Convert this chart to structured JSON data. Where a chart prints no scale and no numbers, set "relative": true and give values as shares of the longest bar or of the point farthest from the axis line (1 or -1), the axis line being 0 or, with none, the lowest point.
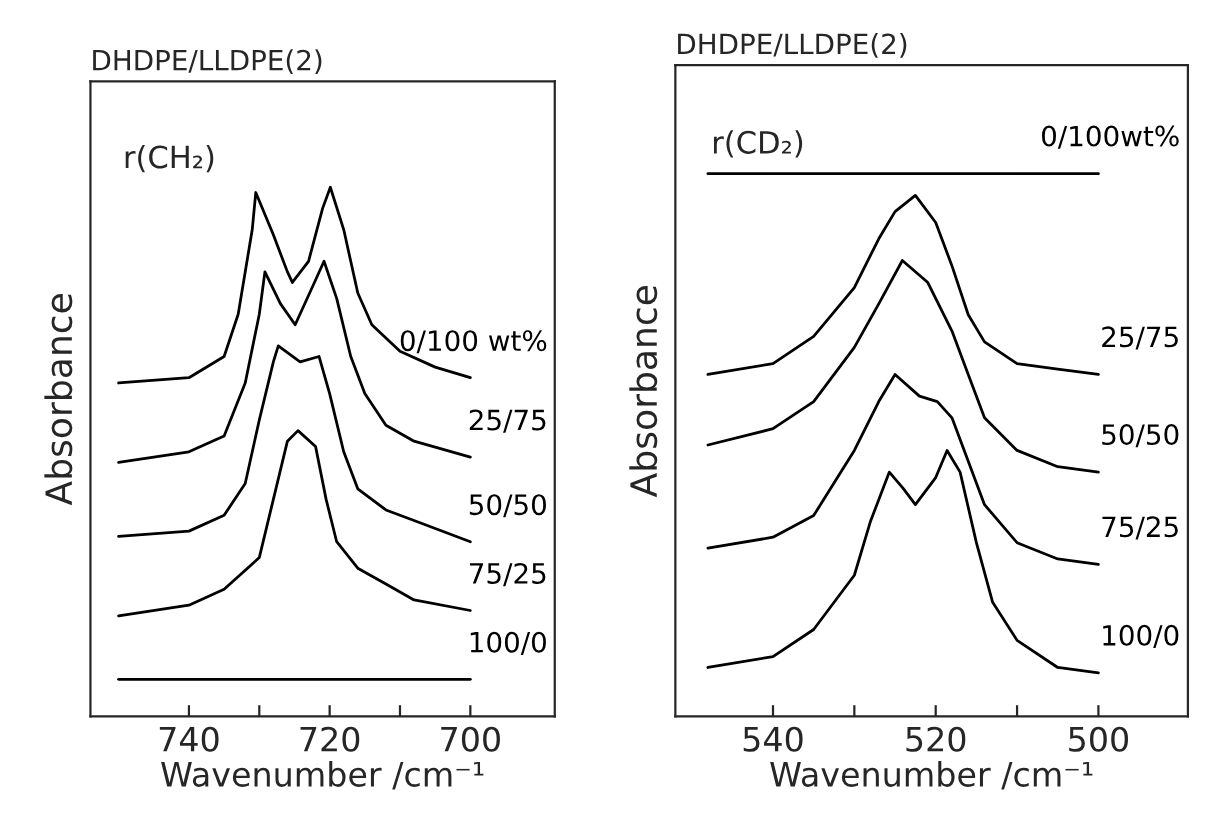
{
  "chart_data": [
    {
      "type": "line",
      "title": "DHDPE/LLDPE(2)",
      "xlabel": "Wavenumber /cm⁻¹",
      "ylabel": "Absorbance",
      "relative": true,
      "annotations": [
        "r(CH₂)"
      ],
      "xlim": [
        754,
        688
      ],
      "xticks": [
        740,
        {
          "value": 730,
          "label": null
        },
        720,
        {
          "value": 710,
          "label": null
        },
        700
      ],
      "grid": false,
      "legend": false,
      "marker": "none",
      "line_style": "solid",
      "series": [
        {
          "name": "0/100 wt%",
          "color": "#000000",
          "x": [
            750,
            740,
            735,
            733,
            731,
            730.5,
            728,
            726,
            725.3,
            723,
            721,
            719.9,
            718,
            716,
            714,
            710,
            705,
            700
          ],
          "values": [
            0.63,
            0.64,
            0.68,
            0.76,
            0.92,
            0.99,
            0.91,
            0.84,
            0.82,
            0.86,
            0.96,
            1.0,
            0.92,
            0.8,
            0.74,
            0.69,
            0.66,
            0.64
          ]
        },
        {
          "name": "25/75",
          "color": "#000000",
          "x": [
            750,
            740,
            735,
            732,
            730,
            729.2,
            727,
            724.9,
            722.5,
            720.8,
            719,
            717,
            715,
            712,
            708,
            700
          ],
          "values": [
            0.48,
            0.5,
            0.53,
            0.63,
            0.76,
            0.84,
            0.78,
            0.74,
            0.81,
            0.86,
            0.79,
            0.68,
            0.61,
            0.55,
            0.52,
            0.49
          ]
        },
        {
          "name": "50/50",
          "color": "#000000",
          "x": [
            750,
            740,
            735,
            732,
            730,
            728,
            727.3,
            724.2,
            721.5,
            720,
            718,
            716,
            712,
            708,
            700
          ],
          "values": [
            0.34,
            0.35,
            0.38,
            0.44,
            0.56,
            0.67,
            0.7,
            0.67,
            0.68,
            0.61,
            0.5,
            0.43,
            0.39,
            0.37,
            0.33
          ]
        },
        {
          "name": "75/25",
          "color": "#000000",
          "x": [
            750,
            740,
            735,
            730,
            728,
            726,
            724.5,
            722,
            720.5,
            719,
            716,
            712,
            708,
            700
          ],
          "values": [
            0.19,
            0.21,
            0.24,
            0.3,
            0.41,
            0.52,
            0.54,
            0.51,
            0.41,
            0.33,
            0.28,
            0.25,
            0.22,
            0.2
          ]
        },
        {
          "name": "100/0",
          "color": "#000000",
          "x": [
            750,
            725,
            700
          ],
          "values": [
            0.07,
            0.07,
            0.07
          ]
        }
      ]
    },
    {
      "type": "line",
      "title": "DHDPE/LLDPE(2)",
      "xlabel": "Wavenumber /cm⁻¹",
      "ylabel": "Absorbance",
      "relative": true,
      "annotations": [
        "r(CD₂)"
      ],
      "xlim": [
        552,
        489
      ],
      "xticks": [
        540,
        {
          "value": 530,
          "label": null
        },
        520,
        {
          "value": 510,
          "label": null
        },
        500
      ],
      "grid": false,
      "legend": false,
      "marker": "none",
      "line_style": "solid",
      "series": [
        {
          "name": "0/100wt%",
          "color": "#000000",
          "x": [
            548,
            524,
            500
          ],
          "values": [
            1.0,
            1.0,
            1.0
          ]
        },
        {
          "name": "25/75",
          "color": "#000000",
          "x": [
            548,
            540,
            535,
            530,
            527,
            525,
            522.5,
            520,
            518,
            516,
            514,
            510,
            505,
            500
          ],
          "values": [
            0.63,
            0.65,
            0.7,
            0.79,
            0.88,
            0.93,
            0.96,
            0.91,
            0.83,
            0.74,
            0.69,
            0.65,
            0.64,
            0.63
          ]
        },
        {
          "name": "50/50",
          "color": "#000000",
          "x": [
            548,
            540,
            535,
            530,
            527,
            524.1,
            521,
            518,
            516,
            514,
            510,
            505,
            500
          ],
          "values": [
            0.5,
            0.53,
            0.58,
            0.68,
            0.76,
            0.84,
            0.8,
            0.71,
            0.63,
            0.55,
            0.49,
            0.46,
            0.45
          ]
        },
        {
          "name": "75/25",
          "color": "#000000",
          "x": [
            548,
            540,
            535,
            530,
            527,
            525,
            522,
            519.8,
            518,
            516,
            514,
            510,
            505,
            500
          ],
          "values": [
            0.31,
            0.33,
            0.37,
            0.49,
            0.58,
            0.63,
            0.59,
            0.58,
            0.55,
            0.47,
            0.39,
            0.32,
            0.29,
            0.28
          ]
        },
        {
          "name": "100/0",
          "color": "#000000",
          "x": [
            548,
            540,
            535,
            530,
            528,
            525.7,
            524,
            522.5,
            520,
            518.6,
            517,
            515,
            513,
            510,
            505,
            500
          ],
          "values": [
            0.09,
            0.11,
            0.16,
            0.26,
            0.36,
            0.45,
            0.42,
            0.39,
            0.44,
            0.49,
            0.45,
            0.32,
            0.21,
            0.14,
            0.09,
            0.08
          ]
        }
      ]
    }
  ]
}
